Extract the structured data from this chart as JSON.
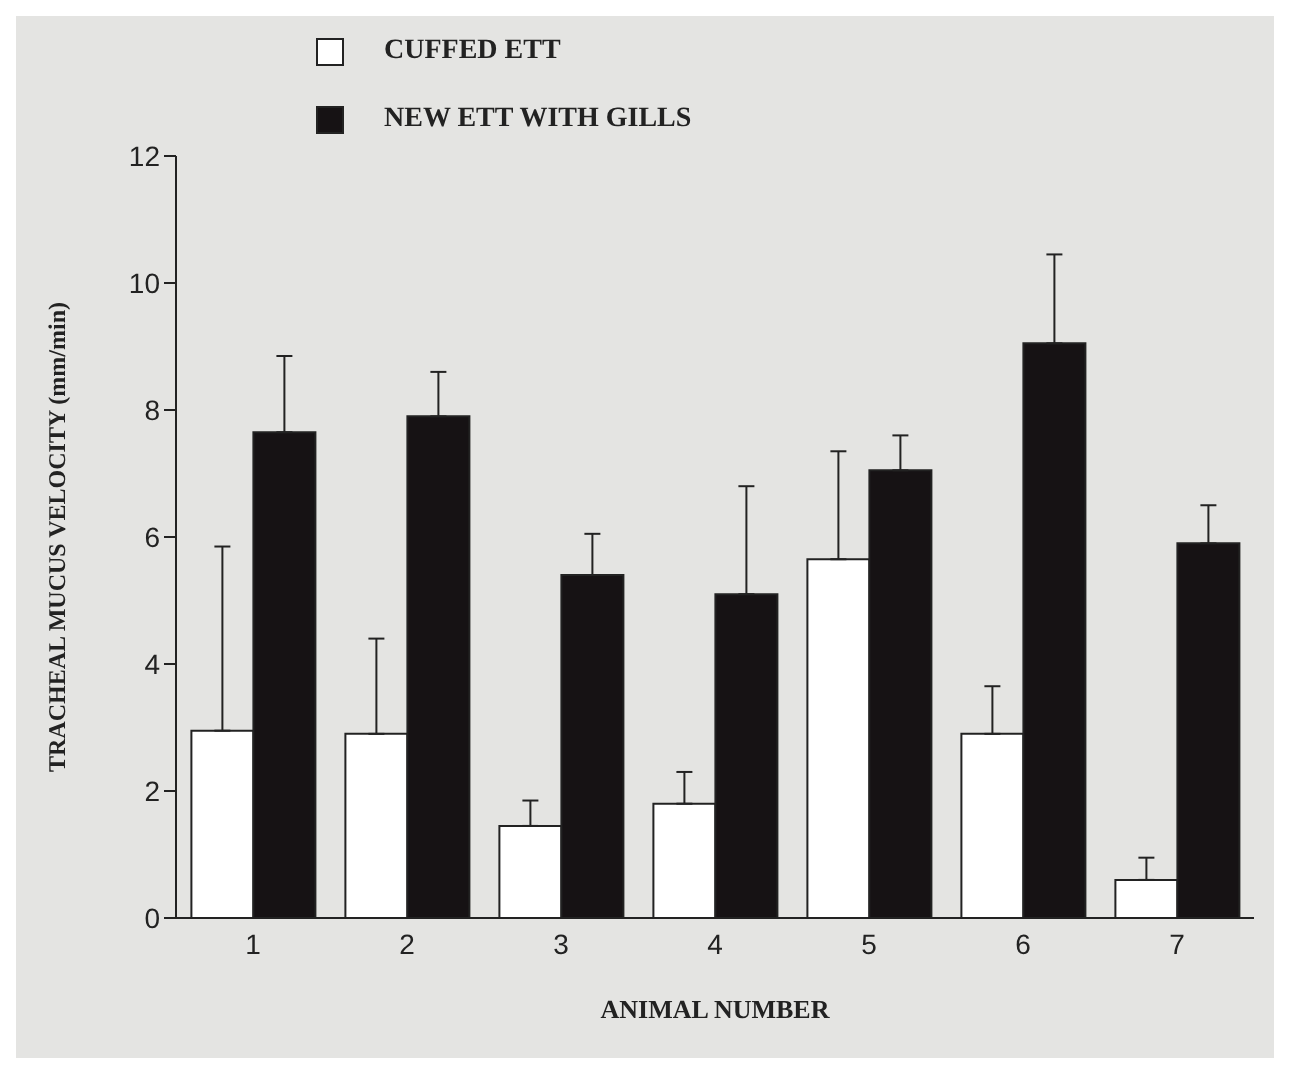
{
  "chart_data": {
    "type": "bar",
    "xlabel": "ANIMAL NUMBER",
    "ylabel": "TRACHEAL MUCUS VELOCITY (mm/min)",
    "categories": [
      "1",
      "2",
      "3",
      "4",
      "5",
      "6",
      "7"
    ],
    "series": [
      {
        "name": "CUFFED ETT",
        "color": "#ffffff",
        "values": [
          2.95,
          2.9,
          1.45,
          1.8,
          5.65,
          2.9,
          0.6
        ],
        "errors": [
          [
            2.95,
            5.85
          ],
          [
            2.9,
            4.4
          ],
          [
            1.45,
            1.85
          ],
          [
            1.8,
            2.3
          ],
          [
            5.65,
            7.35
          ],
          [
            2.9,
            3.65
          ],
          [
            0.6,
            0.95
          ]
        ]
      },
      {
        "name": "NEW ETT WITH GILLS",
        "color": "#161214",
        "values": [
          7.65,
          7.9,
          5.4,
          5.1,
          7.05,
          9.05,
          5.9
        ],
        "errors": [
          [
            7.65,
            8.85
          ],
          [
            7.9,
            8.6
          ],
          [
            5.4,
            6.05
          ],
          [
            5.1,
            6.8
          ],
          [
            7.05,
            7.6
          ],
          [
            9.05,
            10.45
          ],
          [
            5.9,
            6.5
          ]
        ]
      }
    ],
    "ylim": [
      0,
      12
    ],
    "yticks": [
      0,
      2,
      4,
      6,
      8,
      10,
      12
    ],
    "grid": false,
    "legend": "top"
  }
}
